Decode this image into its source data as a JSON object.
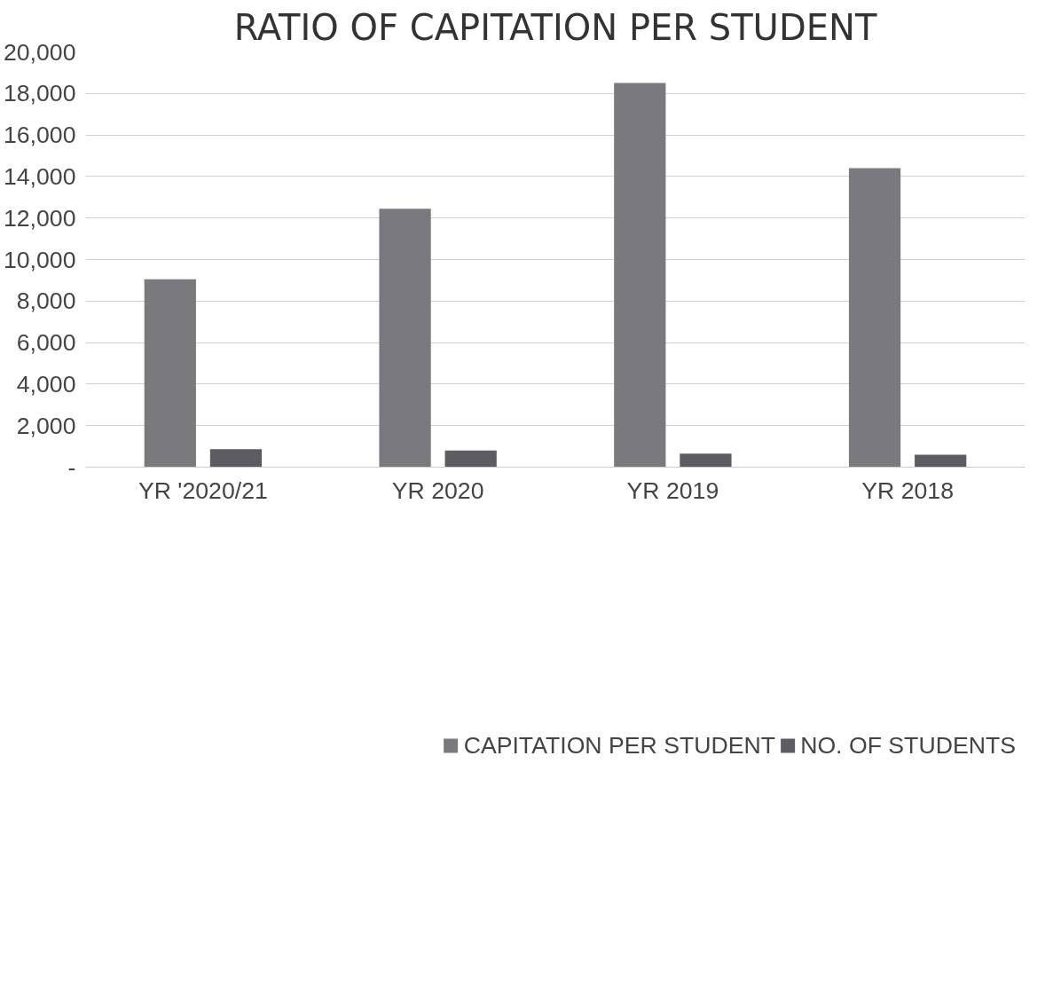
{
  "chart_data": {
    "type": "bar",
    "title": "RATIO OF CAPITATION PER STUDENT",
    "categories": [
      "YR '2020/21",
      "YR 2020",
      "YR 2019",
      "YR 2018"
    ],
    "series": [
      {
        "name": "CAPITATION PER STUDENT",
        "color": "#7a7a7e",
        "values": [
          9050,
          12450,
          18500,
          14400
        ]
      },
      {
        "name": "NO. OF STUDENTS",
        "color": "#5c5c62",
        "values": [
          870,
          800,
          650,
          600
        ]
      }
    ],
    "ylim": [
      0,
      20000
    ],
    "yticks": [
      {
        "value": 0,
        "label": "-"
      },
      {
        "value": 2000,
        "label": "2,000"
      },
      {
        "value": 4000,
        "label": "4,000"
      },
      {
        "value": 6000,
        "label": "6,000"
      },
      {
        "value": 8000,
        "label": "8,000"
      },
      {
        "value": 10000,
        "label": "10,000"
      },
      {
        "value": 12000,
        "label": "12,000"
      },
      {
        "value": 14000,
        "label": "14,000"
      },
      {
        "value": 16000,
        "label": "16,000"
      },
      {
        "value": 18000,
        "label": "18,000"
      },
      {
        "value": 20000,
        "label": "20,000"
      }
    ],
    "grid": "y",
    "legend": "bottom"
  }
}
